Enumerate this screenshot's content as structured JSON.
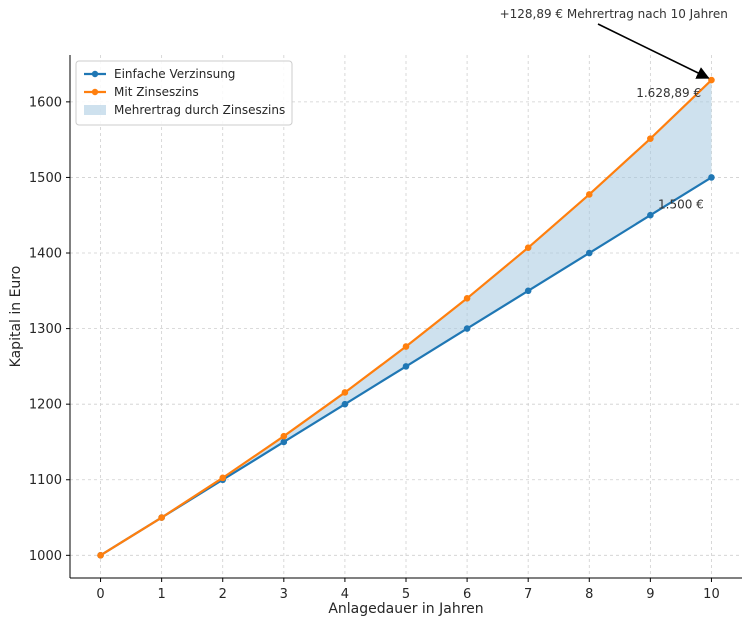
{
  "chart_data": {
    "type": "line",
    "xlabel": "Anlagedauer in Jahren",
    "ylabel": "Kapital in Euro",
    "x": [
      0,
      1,
      2,
      3,
      4,
      5,
      6,
      7,
      8,
      9,
      10
    ],
    "xlim": [
      -0.5,
      10.5
    ],
    "ylim": [
      970,
      1662
    ],
    "xticks": [
      0,
      1,
      2,
      3,
      4,
      5,
      6,
      7,
      8,
      9,
      10
    ],
    "yticks": [
      1000,
      1100,
      1200,
      1300,
      1400,
      1500,
      1600
    ],
    "grid": true,
    "legend_position": "top-left",
    "series": [
      {
        "name": "Einfache Verzinsung",
        "color": "#1f77b4",
        "values": [
          1000,
          1050,
          1100,
          1150,
          1200,
          1250,
          1300,
          1350,
          1400,
          1450,
          1500
        ]
      },
      {
        "name": "Mit Zinseszins",
        "color": "#ff7f0e",
        "values": [
          1000,
          1050,
          1102.5,
          1157.63,
          1215.51,
          1276.28,
          1340.1,
          1407.1,
          1477.46,
          1551.33,
          1628.89
        ]
      }
    ],
    "fill_between": {
      "name": "Mehrertrag durch Zinseszins",
      "color": "#a6c8e0"
    },
    "annotations": [
      {
        "text": "1.628,89 €",
        "x": 9.3,
        "y": 1612
      },
      {
        "text": "1.500 €",
        "x": 9.5,
        "y": 1464
      },
      {
        "text": "+128,89 € Mehrertrag nach 10 Jahren",
        "x": 8.4,
        "y": 1705,
        "arrow_to": [
          10,
          1628.89
        ]
      }
    ]
  }
}
